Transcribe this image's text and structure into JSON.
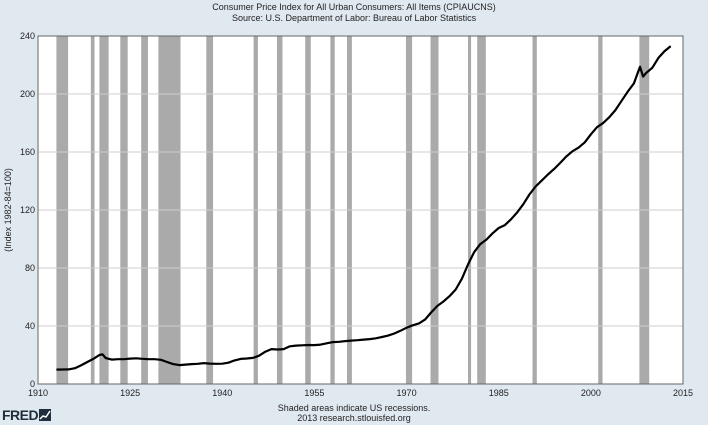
{
  "chart_data": {
    "type": "line",
    "title": "Consumer Price Index for All Urban Consumers: All Items (CPIAUCNS)",
    "subtitle": "Source: U.S. Department of Labor: Bureau of Labor Statistics",
    "ylabel": "(Index 1982-84=100)",
    "xlabel": "",
    "xlim": [
      1910,
      2015
    ],
    "ylim": [
      0,
      240
    ],
    "x_ticks": [
      "1910",
      "1925",
      "1940",
      "1955",
      "1970",
      "1985",
      "2000",
      "2015"
    ],
    "y_ticks": [
      "0",
      "40",
      "80",
      "120",
      "160",
      "200",
      "240"
    ],
    "grid": "horizontal",
    "line_color": "#000000",
    "recession_color": "#aaaaaa",
    "recessions": [
      [
        1913.0,
        1914.9
      ],
      [
        1918.6,
        1919.2
      ],
      [
        1920.0,
        1921.5
      ],
      [
        1923.4,
        1924.6
      ],
      [
        1926.8,
        1927.9
      ],
      [
        1929.6,
        1933.2
      ],
      [
        1937.4,
        1938.5
      ],
      [
        1945.1,
        1945.8
      ],
      [
        1948.9,
        1949.8
      ],
      [
        1953.5,
        1954.4
      ],
      [
        1957.6,
        1958.3
      ],
      [
        1960.3,
        1961.1
      ],
      [
        1969.9,
        1970.9
      ],
      [
        1973.9,
        1975.2
      ],
      [
        1980.0,
        1980.5
      ],
      [
        1981.5,
        1982.9
      ],
      [
        1990.5,
        1991.2
      ],
      [
        2001.2,
        2001.9
      ],
      [
        2007.9,
        2009.5
      ]
    ],
    "series": [
      {
        "x": [
          1913,
          1915,
          1916,
          1917,
          1918,
          1919,
          1920,
          1920.5,
          1921,
          1922,
          1923,
          1924,
          1925,
          1926,
          1927,
          1928,
          1929,
          1930,
          1931,
          1932,
          1933,
          1934,
          1935,
          1936,
          1937,
          1938,
          1939,
          1940,
          1941,
          1942,
          1943,
          1944,
          1945,
          1946,
          1947,
          1948,
          1949,
          1950,
          1951,
          1952,
          1953,
          1954,
          1955,
          1956,
          1957,
          1958,
          1959,
          1960,
          1961,
          1962,
          1963,
          1964,
          1965,
          1966,
          1967,
          1968,
          1969,
          1970,
          1971,
          1972,
          1973,
          1974,
          1975,
          1976,
          1977,
          1978,
          1979,
          1980,
          1981,
          1982,
          1983,
          1984,
          1985,
          1986,
          1987,
          1988,
          1989,
          1990,
          1991,
          1992,
          1993,
          1994,
          1995,
          1996,
          1997,
          1998,
          1999,
          2000,
          2001,
          2002,
          2003,
          2004,
          2005,
          2006,
          2007,
          2008,
          2008.5,
          2009,
          2010,
          2011,
          2012,
          2013
        ],
        "y": [
          9.9,
          10.1,
          10.9,
          12.8,
          15.1,
          17.3,
          20.0,
          20.5,
          17.9,
          16.8,
          17.1,
          17.1,
          17.5,
          17.7,
          17.4,
          17.1,
          17.1,
          16.7,
          15.2,
          13.7,
          13.0,
          13.4,
          13.7,
          13.9,
          14.4,
          14.1,
          13.9,
          14.0,
          14.7,
          16.3,
          17.3,
          17.6,
          18.0,
          19.5,
          22.3,
          24.1,
          23.8,
          24.1,
          26.0,
          26.5,
          26.7,
          26.9,
          26.8,
          27.2,
          28.1,
          28.9,
          29.1,
          29.6,
          29.9,
          30.2,
          30.6,
          31.0,
          31.5,
          32.4,
          33.4,
          34.8,
          36.7,
          38.8,
          40.5,
          41.8,
          44.4,
          49.3,
          53.8,
          56.9,
          60.6,
          65.2,
          72.6,
          82.4,
          90.9,
          96.5,
          99.6,
          103.9,
          107.6,
          109.6,
          113.6,
          118.3,
          124.0,
          130.7,
          136.2,
          140.3,
          144.5,
          148.2,
          152.4,
          156.9,
          160.5,
          163.0,
          166.6,
          172.2,
          177.1,
          179.9,
          184.0,
          188.9,
          195.3,
          201.6,
          207.3,
          218.8,
          212.0,
          214.5,
          218.1,
          224.9,
          229.6,
          233.0
        ]
      }
    ]
  },
  "footer": {
    "line1": "Shaded areas indicate US recessions.",
    "line2": "2013 research.stlouisfed.org"
  },
  "logo": {
    "text": "FRED"
  }
}
